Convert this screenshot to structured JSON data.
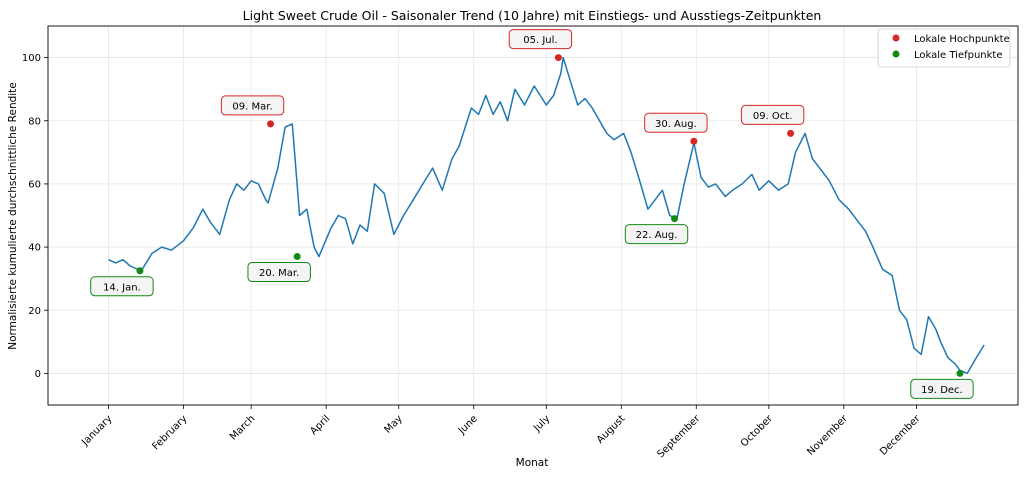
{
  "chart_data": {
    "type": "line",
    "title": "Light Sweet Crude Oil - Saisonaler Trend (10 Jahre) mit Einstiegs- und Ausstiegs-Zeitpunkten",
    "xlabel": "Monat",
    "ylabel": "Normalisierte kumulierte durchschnittliche Rendite",
    "x_tick_labels": [
      "January",
      "February",
      "March",
      "April",
      "May",
      "June",
      "July",
      "August",
      "September",
      "October",
      "November",
      "December"
    ],
    "y_ticks": [
      0,
      20,
      40,
      60,
      80,
      100
    ],
    "xlim": [
      -25,
      376
    ],
    "ylim": [
      -10,
      110
    ],
    "grid": true,
    "legend_position": "top-right",
    "legend": [
      {
        "label": "Lokale Hochpunkte",
        "color": "#d62728"
      },
      {
        "label": "Lokale Tiefpunkte",
        "color": "#138a13"
      }
    ],
    "line_color": "#1f77b4",
    "series": [
      {
        "x": [
          0,
          3,
          6,
          9,
          12,
          14,
          18,
          22,
          26,
          31,
          35,
          39,
          42,
          46,
          50,
          53,
          56,
          59,
          62,
          65,
          66,
          70,
          73,
          76,
          79,
          82,
          85,
          87,
          92,
          95,
          98,
          101,
          104,
          107,
          110,
          114,
          118,
          122,
          126,
          130,
          134,
          138,
          142,
          145,
          150,
          153,
          156,
          159,
          162,
          165,
          168,
          172,
          176,
          181,
          184,
          187,
          188,
          192,
          194,
          197,
          200,
          203,
          206,
          209,
          213,
          216,
          220,
          223,
          226,
          229,
          232,
          235,
          238,
          242,
          245,
          248,
          251,
          255,
          258,
          262,
          266,
          269,
          273,
          277,
          281,
          284,
          288,
          291,
          295,
          298,
          302,
          306,
          310,
          313,
          316,
          320,
          324,
          327,
          330,
          333,
          336,
          339,
          342,
          344,
          347,
          350,
          352,
          355,
          358,
          362
        ],
        "y": [
          36,
          35,
          36,
          34,
          33,
          33,
          38,
          40,
          39,
          42,
          46,
          52,
          48,
          44,
          55,
          60,
          58,
          61,
          60,
          55,
          54,
          65,
          78,
          79,
          50,
          52,
          40,
          37,
          46,
          50,
          49,
          41,
          47,
          45,
          60,
          57,
          44,
          50,
          55,
          60,
          65,
          58,
          68,
          72,
          84,
          82,
          88,
          82,
          86,
          80,
          90,
          85,
          91,
          85,
          88,
          95,
          100,
          90,
          85,
          87,
          84,
          80,
          76,
          74,
          76,
          70,
          60,
          52,
          55,
          58,
          50,
          49,
          60,
          73,
          62,
          59,
          60,
          56,
          58,
          60,
          63,
          58,
          61,
          58,
          60,
          70,
          76,
          68,
          64,
          61,
          55,
          52,
          48,
          45,
          40,
          33,
          31,
          20,
          17,
          8,
          6,
          18,
          14,
          10,
          5,
          3,
          1,
          0,
          4,
          9
        ]
      }
    ],
    "highs": [
      {
        "label": "09. Mar.",
        "x": 67,
        "y": 79
      },
      {
        "label": "05. Jul.",
        "x": 186,
        "y": 100
      },
      {
        "label": "30. Aug.",
        "x": 242,
        "y": 73.5
      },
      {
        "label": "09. Oct.",
        "x": 282,
        "y": 76
      }
    ],
    "lows": [
      {
        "label": "14. Jan.",
        "x": 13,
        "y": 32.5
      },
      {
        "label": "20. Mar.",
        "x": 78,
        "y": 37
      },
      {
        "label": "22. Aug.",
        "x": 234,
        "y": 49
      },
      {
        "label": "19. Dec.",
        "x": 352,
        "y": 0
      }
    ]
  }
}
